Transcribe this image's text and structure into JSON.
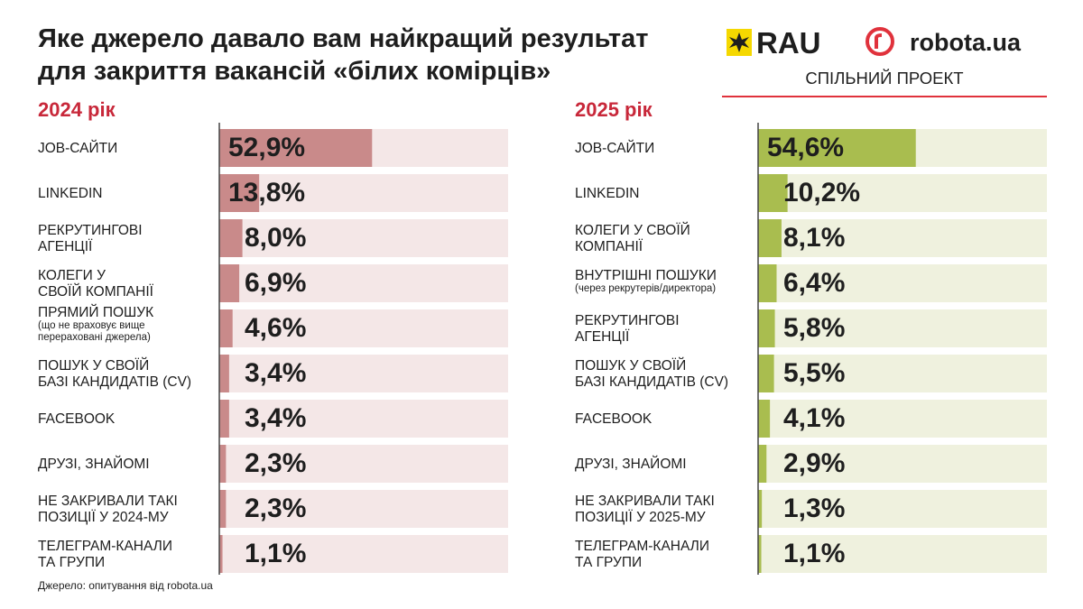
{
  "header": {
    "title": "Яке джерело давало вам найкращий результат\nдля закриття вакансій «білих комірців»",
    "logos": [
      "RAU",
      "robota.ua"
    ],
    "joint_label": "СПІЛЬНИЙ ПРОЕКТ"
  },
  "chart_data": [
    {
      "type": "bar",
      "orientation": "horizontal",
      "title": "2024 рік",
      "categories": [
        "JOB-САЙТИ",
        "LINKEDIN",
        "РЕКРУТИНГОВІ\nАГЕНЦІЇ",
        "КОЛЕГИ У\nСВОЇЙ КОМПАНІЇ",
        "ПРЯМИЙ ПОШУК\n(що не враховує вище\nперераховані джерела)",
        "ПОШУК У СВОЇЙ\nБАЗІ КАНДИДАТІВ (CV)",
        "FACEBOOK",
        "ДРУЗІ, ЗНАЙОМІ",
        "НЕ ЗАКРИВАЛИ ТАКІ\nПОЗИЦІЇ У 2024-МУ",
        "ТЕЛЕГРАМ-КАНАЛИ\nТА ГРУПИ"
      ],
      "values": [
        52.9,
        13.8,
        8.0,
        6.9,
        4.6,
        3.4,
        3.4,
        2.3,
        2.3,
        1.1
      ],
      "value_labels": [
        "52,9%",
        "13,8%",
        "8,0%",
        "6,9%",
        "4,6%",
        "3,4%",
        "3,4%",
        "2,3%",
        "2,3%",
        "1,1%"
      ],
      "color": "#c98a8a",
      "track_color": "#f4e7e7",
      "xlim": [
        0,
        100
      ]
    },
    {
      "type": "bar",
      "orientation": "horizontal",
      "title": "2025 рік",
      "categories": [
        "JOB-САЙТИ",
        "LINKEDIN",
        "КОЛЕГИ У СВОЇЙ\nКОМПАНІЇ",
        "ВНУТРІШНІ ПОШУКИ\n(через рекрутерів/директора)",
        "РЕКРУТИНГОВІ\nАГЕНЦІЇ",
        "ПОШУК У СВОЇЙ\nБАЗІ КАНДИДАТІВ (CV)",
        "FACEBOOK",
        "ДРУЗІ, ЗНАЙОМІ",
        "НЕ ЗАКРИВАЛИ ТАКІ\nПОЗИЦІЇ У 2025-МУ",
        "ТЕЛЕГРАМ-КАНАЛИ\nТА ГРУПИ"
      ],
      "values": [
        54.6,
        10.2,
        8.1,
        6.4,
        5.8,
        5.5,
        4.1,
        2.9,
        1.3,
        1.1
      ],
      "value_labels": [
        "54,6%",
        "10,2%",
        "8,1%",
        "6,4%",
        "5,8%",
        "5,5%",
        "4,1%",
        "2,9%",
        "1,3%",
        "1,1%"
      ],
      "color": "#a9bd4f",
      "track_color": "#eff1de",
      "xlim": [
        0,
        100
      ]
    }
  ],
  "source": "Джерело: опитування від robota.ua"
}
